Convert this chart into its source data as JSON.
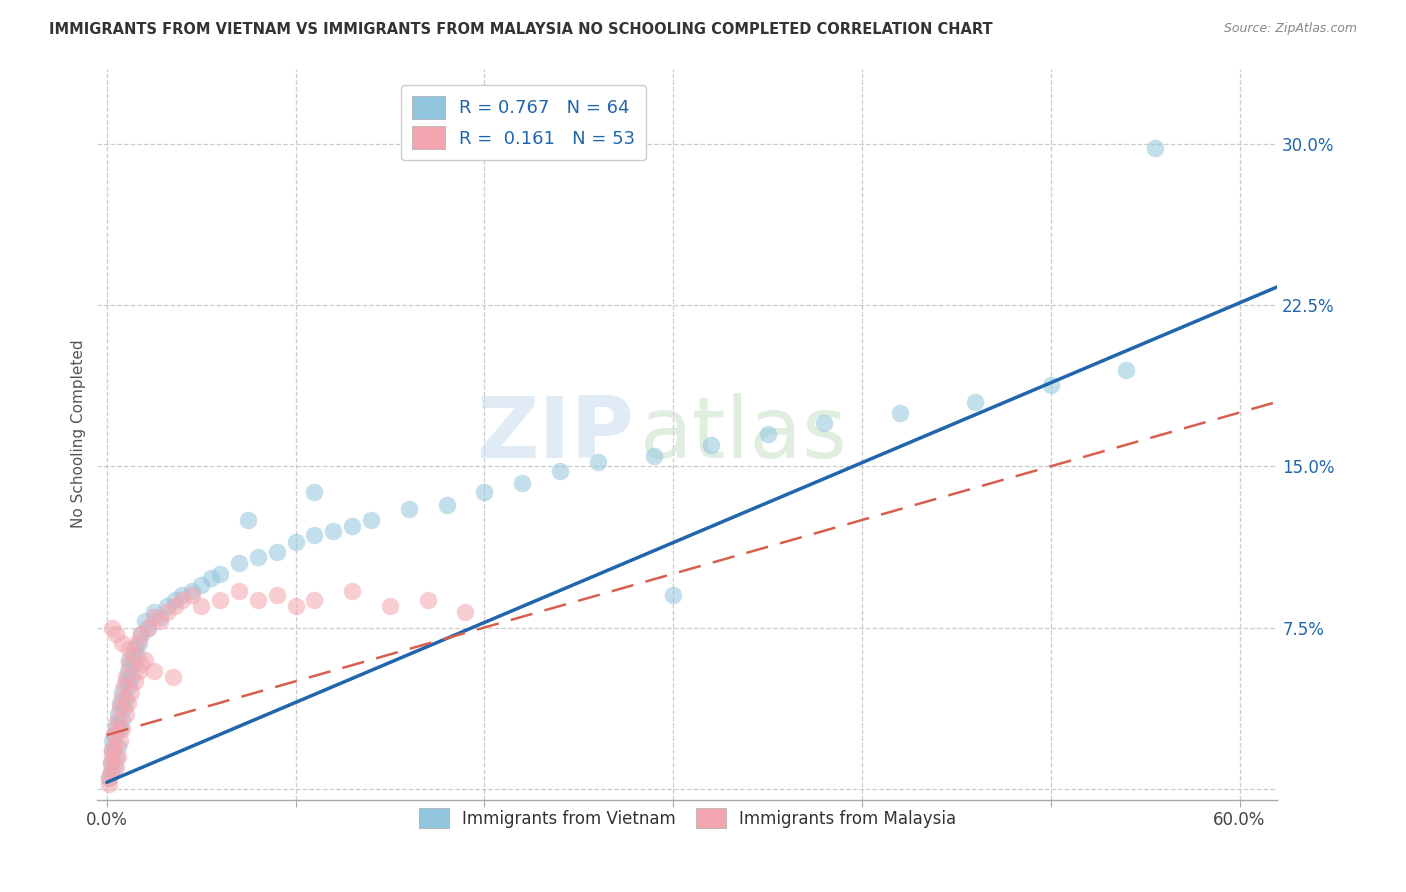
{
  "title": "IMMIGRANTS FROM VIETNAM VS IMMIGRANTS FROM MALAYSIA NO SCHOOLING COMPLETED CORRELATION CHART",
  "source": "Source: ZipAtlas.com",
  "ylabel": "No Schooling Completed",
  "legend_label1": "Immigrants from Vietnam",
  "legend_label2": "Immigrants from Malaysia",
  "r1": 0.767,
  "n1": 64,
  "r2": 0.161,
  "n2": 53,
  "xlim": [
    -0.005,
    0.62
  ],
  "ylim": [
    -0.005,
    0.335
  ],
  "ytick_vals": [
    0.075,
    0.15,
    0.225,
    0.3
  ],
  "ytick_labels": [
    "7.5%",
    "15.0%",
    "22.5%",
    "30.0%"
  ],
  "color_vietnam": "#92C5DE",
  "color_malaysia": "#F4A6B0",
  "line_vietnam": "#2166AC",
  "line_malaysia": "#D6604D",
  "background_color": "#ffffff",
  "watermark_zip": "ZIP",
  "watermark_atlas": "atlas",
  "grid_color": "#CCCCCC",
  "grid_yticks": [
    0.0,
    0.075,
    0.15,
    0.225,
    0.3
  ],
  "vietnam_x": [
    0.001,
    0.002,
    0.002,
    0.003,
    0.003,
    0.004,
    0.004,
    0.005,
    0.005,
    0.006,
    0.006,
    0.007,
    0.007,
    0.008,
    0.008,
    0.009,
    0.01,
    0.01,
    0.011,
    0.012,
    0.012,
    0.013,
    0.014,
    0.015,
    0.016,
    0.017,
    0.018,
    0.02,
    0.022,
    0.025,
    0.028,
    0.032,
    0.036,
    0.04,
    0.045,
    0.05,
    0.055,
    0.06,
    0.07,
    0.08,
    0.09,
    0.1,
    0.11,
    0.12,
    0.13,
    0.14,
    0.16,
    0.18,
    0.2,
    0.22,
    0.24,
    0.26,
    0.29,
    0.32,
    0.35,
    0.38,
    0.42,
    0.46,
    0.5,
    0.54,
    0.075,
    0.11,
    0.3,
    0.555
  ],
  "vietnam_y": [
    0.005,
    0.008,
    0.012,
    0.018,
    0.022,
    0.01,
    0.025,
    0.015,
    0.03,
    0.035,
    0.02,
    0.028,
    0.04,
    0.032,
    0.045,
    0.038,
    0.05,
    0.042,
    0.055,
    0.048,
    0.06,
    0.052,
    0.058,
    0.065,
    0.062,
    0.068,
    0.072,
    0.078,
    0.075,
    0.082,
    0.08,
    0.085,
    0.088,
    0.09,
    0.092,
    0.095,
    0.098,
    0.1,
    0.105,
    0.108,
    0.11,
    0.115,
    0.118,
    0.12,
    0.122,
    0.125,
    0.13,
    0.132,
    0.138,
    0.142,
    0.148,
    0.152,
    0.155,
    0.16,
    0.165,
    0.17,
    0.175,
    0.18,
    0.188,
    0.195,
    0.125,
    0.138,
    0.09,
    0.298
  ],
  "malaysia_x": [
    0.001,
    0.001,
    0.002,
    0.002,
    0.003,
    0.003,
    0.004,
    0.004,
    0.005,
    0.005,
    0.006,
    0.006,
    0.007,
    0.007,
    0.008,
    0.008,
    0.009,
    0.01,
    0.01,
    0.011,
    0.012,
    0.013,
    0.014,
    0.015,
    0.016,
    0.017,
    0.018,
    0.02,
    0.022,
    0.025,
    0.028,
    0.032,
    0.036,
    0.04,
    0.045,
    0.05,
    0.06,
    0.07,
    0.08,
    0.09,
    0.1,
    0.11,
    0.13,
    0.15,
    0.17,
    0.19,
    0.003,
    0.005,
    0.008,
    0.012,
    0.018,
    0.025,
    0.035
  ],
  "malaysia_y": [
    0.002,
    0.005,
    0.008,
    0.012,
    0.015,
    0.018,
    0.02,
    0.025,
    0.01,
    0.028,
    0.032,
    0.015,
    0.038,
    0.022,
    0.042,
    0.028,
    0.048,
    0.035,
    0.052,
    0.04,
    0.058,
    0.045,
    0.062,
    0.05,
    0.068,
    0.055,
    0.072,
    0.06,
    0.075,
    0.08,
    0.078,
    0.082,
    0.085,
    0.088,
    0.09,
    0.085,
    0.088,
    0.092,
    0.088,
    0.09,
    0.085,
    0.088,
    0.092,
    0.085,
    0.088,
    0.082,
    0.075,
    0.072,
    0.068,
    0.065,
    0.058,
    0.055,
    0.052
  ],
  "line1_x0": 0.0,
  "line1_y0": 0.003,
  "line1_x1": 0.6,
  "line1_y1": 0.226,
  "line2_x0": 0.0,
  "line2_y0": 0.025,
  "line2_x1": 0.6,
  "line2_y1": 0.175
}
